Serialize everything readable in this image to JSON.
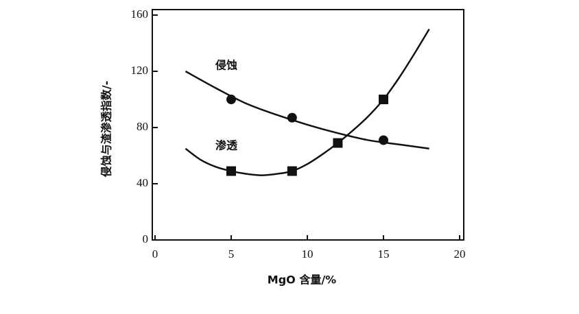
{
  "chart_data": {
    "type": "scatter",
    "xlabel": "MgO 含量/%",
    "ylabel": "侵蚀与渣渗透指数/-",
    "xlim": [
      0,
      20
    ],
    "xticks": [
      0,
      5,
      10,
      15,
      20
    ],
    "ylim": [
      0,
      160
    ],
    "yticks": [
      0,
      40,
      80,
      120,
      160
    ],
    "series": [
      {
        "name": "侵蚀",
        "color": "#111111",
        "marker": "circle",
        "x": [
          5,
          9,
          15
        ],
        "values": [
          100,
          87,
          71
        ],
        "fit_x": [
          2,
          4,
          6,
          8,
          10,
          12,
          14,
          16,
          18
        ],
        "fit_values": [
          120,
          108,
          97,
          89,
          82,
          76,
          71,
          68,
          65
        ]
      },
      {
        "name": "渗透",
        "color": "#111111",
        "marker": "square",
        "x": [
          5,
          9,
          12,
          15
        ],
        "values": [
          49,
          49,
          69,
          100
        ],
        "fit_x": [
          2,
          3,
          4,
          5,
          6,
          7,
          8,
          9,
          10,
          11,
          12,
          13,
          14,
          15,
          16,
          17,
          18
        ],
        "fit_values": [
          65,
          57,
          52,
          49,
          47,
          46,
          47,
          49,
          54,
          61,
          69,
          78,
          88,
          100,
          115,
          132,
          150
        ]
      }
    ]
  }
}
